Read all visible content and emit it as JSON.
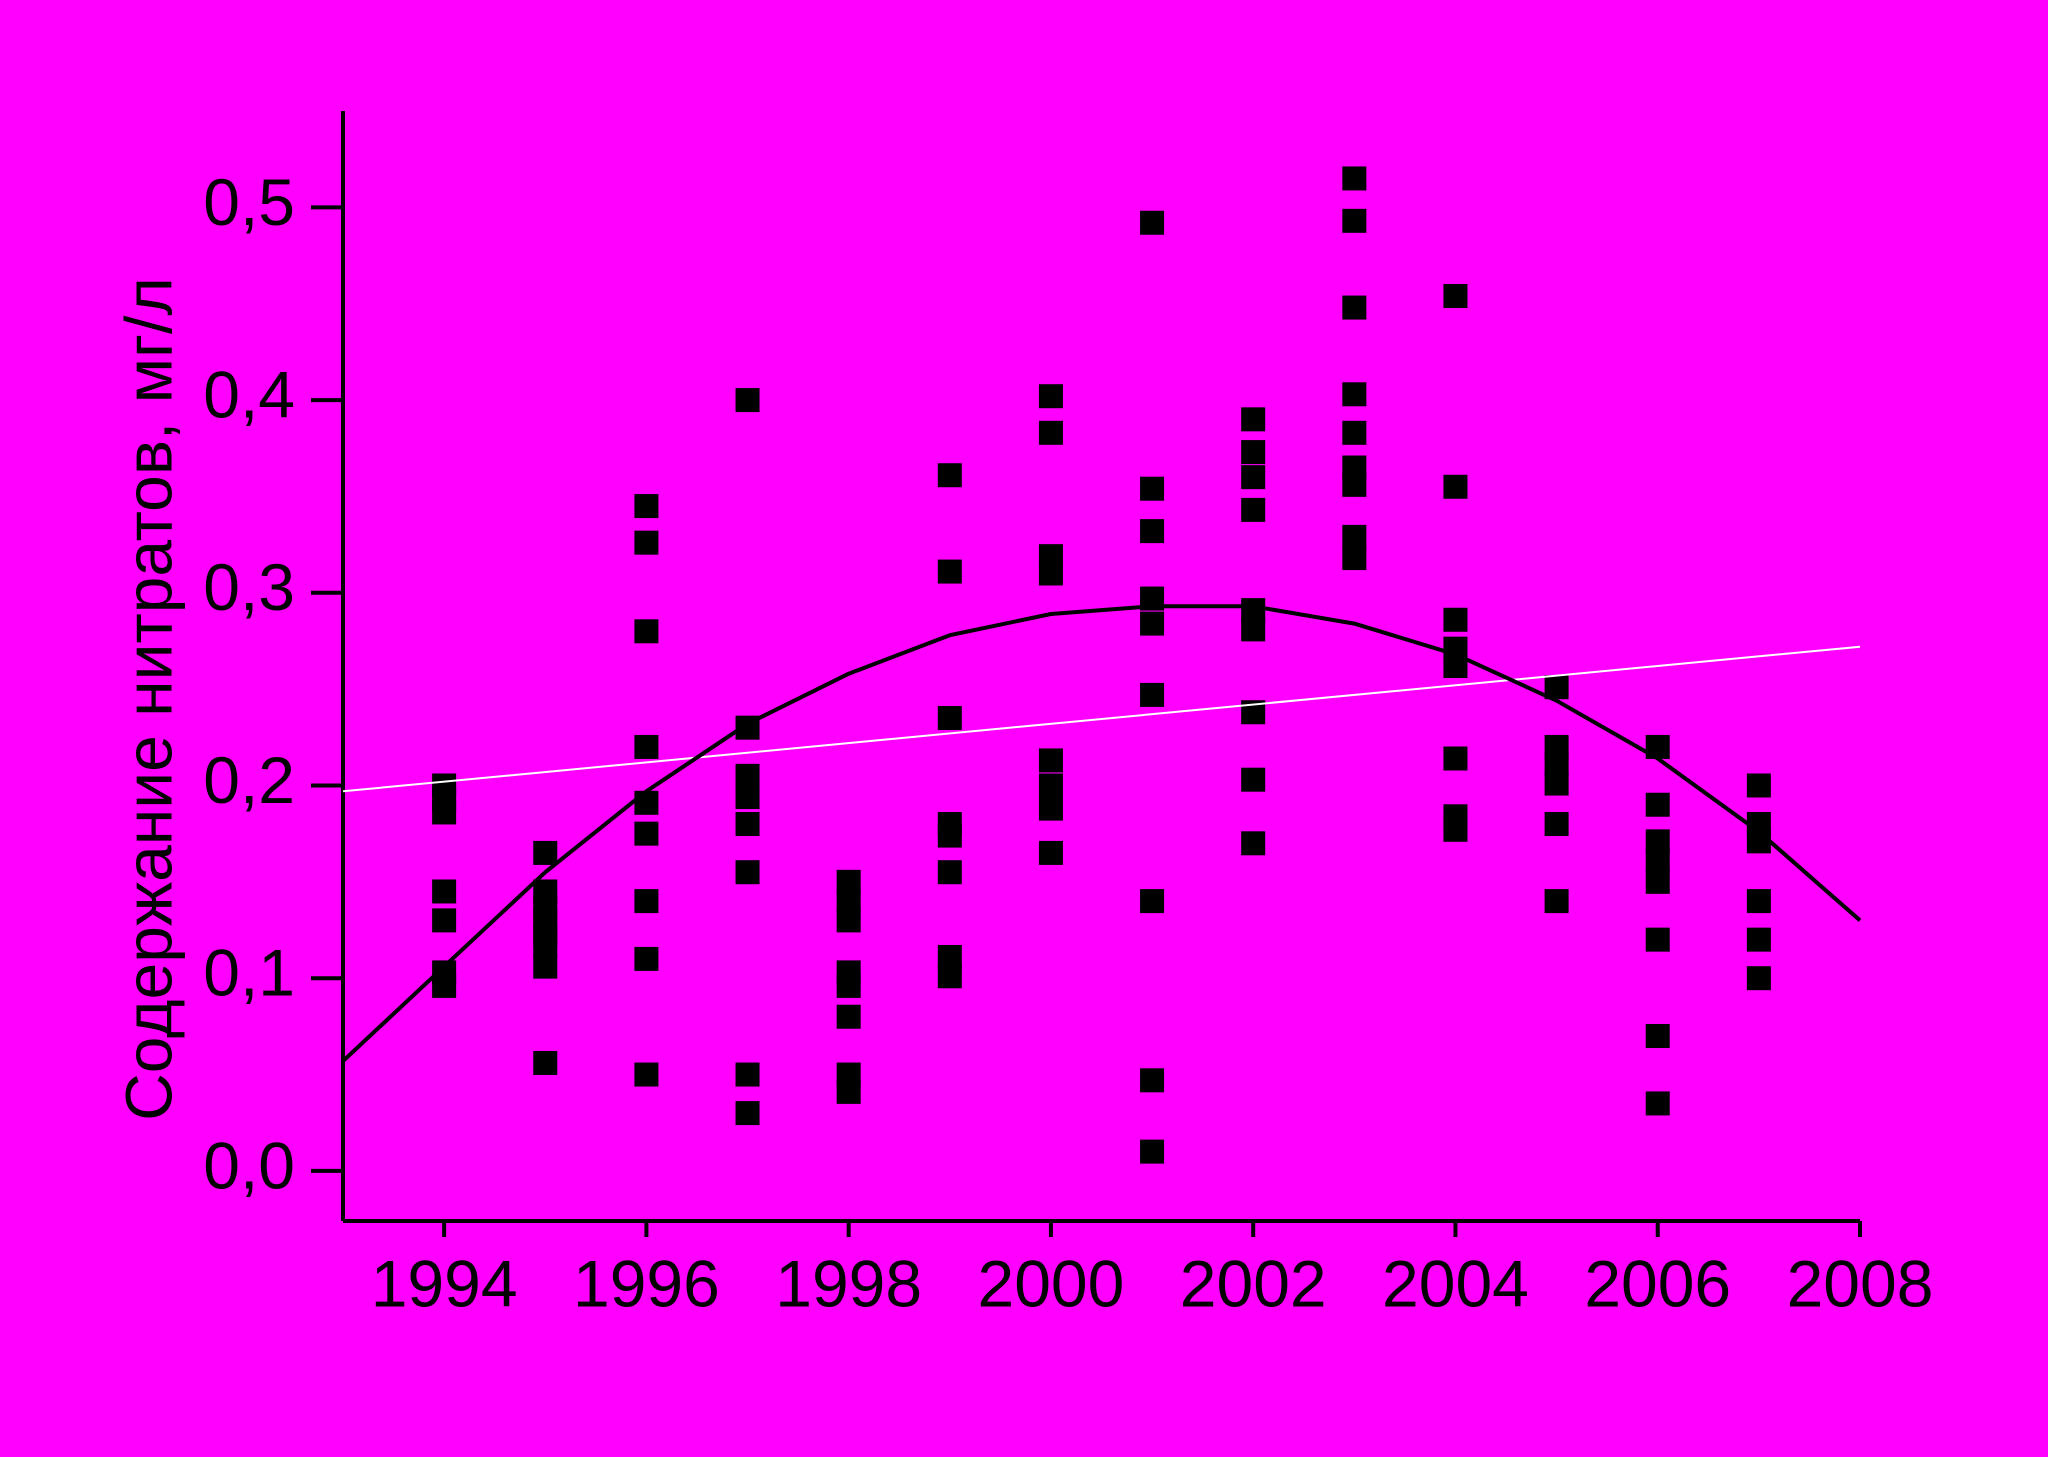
{
  "chart_data": {
    "type": "scatter",
    "ylabel": "Содержание нитратов, мг/л",
    "xlim": [
      1993,
      2008
    ],
    "xticks": [
      1994,
      1996,
      1998,
      2000,
      2002,
      2004,
      2006,
      2008
    ],
    "ylim": [
      -0.026,
      0.55
    ],
    "yticks": [
      {
        "value": 0,
        "label": "0,0"
      },
      {
        "value": 0.1,
        "label": "0,1"
      },
      {
        "value": 0.2,
        "label": "0,2"
      },
      {
        "value": 0.3,
        "label": "0,3"
      },
      {
        "value": 0.4,
        "label": "0,4"
      },
      {
        "value": 0.5,
        "label": "0,5"
      }
    ],
    "background": "#ff00ff",
    "series": [
      {
        "type": "scatter",
        "color": "#000000",
        "x": [
          1994,
          1994,
          1994,
          1994,
          1994,
          1994,
          1994,
          1995,
          1995,
          1995,
          1995,
          1995,
          1995,
          1995,
          1995,
          1996,
          1996,
          1996,
          1996,
          1996,
          1996,
          1996,
          1996,
          1996,
          1997,
          1997,
          1997,
          1997,
          1997,
          1997,
          1997,
          1997,
          1998,
          1998,
          1998,
          1998,
          1998,
          1998,
          1998,
          1998,
          1999,
          1999,
          1999,
          1999,
          1999,
          1999,
          1999,
          1999,
          2000,
          2000,
          2000,
          2000,
          2000,
          2000,
          2000,
          2000,
          2001,
          2001,
          2001,
          2001,
          2001,
          2001,
          2001,
          2001,
          2001,
          2002,
          2002,
          2002,
          2002,
          2002,
          2002,
          2002,
          2002,
          2002,
          2003,
          2003,
          2003,
          2003,
          2003,
          2003,
          2003,
          2003,
          2003,
          2004,
          2004,
          2004,
          2004,
          2004,
          2004,
          2004,
          2004,
          2005,
          2005,
          2005,
          2005,
          2005,
          2005,
          2006,
          2006,
          2006,
          2006,
          2006,
          2006,
          2006,
          2006,
          2007,
          2007,
          2007,
          2007,
          2007,
          2007
        ],
        "values": [
          0.2,
          0.193,
          0.186,
          0.145,
          0.13,
          0.103,
          0.096,
          0.165,
          0.145,
          0.137,
          0.13,
          0.123,
          0.117,
          0.106,
          0.056,
          0.345,
          0.326,
          0.28,
          0.22,
          0.191,
          0.175,
          0.14,
          0.11,
          0.05,
          0.4,
          0.23,
          0.205,
          0.194,
          0.18,
          0.155,
          0.05,
          0.03,
          0.15,
          0.14,
          0.13,
          0.103,
          0.096,
          0.08,
          0.05,
          0.041,
          0.361,
          0.311,
          0.235,
          0.18,
          0.174,
          0.155,
          0.111,
          0.101,
          0.402,
          0.383,
          0.319,
          0.31,
          0.213,
          0.2,
          0.188,
          0.165,
          0.492,
          0.354,
          0.332,
          0.297,
          0.284,
          0.247,
          0.14,
          0.047,
          0.01,
          0.39,
          0.373,
          0.36,
          0.343,
          0.291,
          0.281,
          0.238,
          0.203,
          0.17,
          0.515,
          0.493,
          0.448,
          0.403,
          0.383,
          0.365,
          0.356,
          0.329,
          0.318,
          0.454,
          0.355,
          0.286,
          0.271,
          0.262,
          0.214,
          0.184,
          0.177,
          0.251,
          0.22,
          0.211,
          0.201,
          0.18,
          0.14,
          0.22,
          0.19,
          0.171,
          0.161,
          0.15,
          0.12,
          0.07,
          0.035,
          0.2,
          0.18,
          0.171,
          0.14,
          0.12,
          0.1
        ]
      },
      {
        "type": "line",
        "color": "#ffffff",
        "x": [
          1993,
          2008
        ],
        "values": [
          0.197,
          0.272
        ]
      },
      {
        "type": "line",
        "color": "#000000",
        "x": [
          1993,
          1994,
          1995,
          1996,
          1997,
          1998,
          1999,
          2000,
          2001,
          2002,
          2003,
          2004,
          2005,
          2006,
          2007,
          2008
        ],
        "values": [
          0.057,
          0.106,
          0.155,
          0.197,
          0.232,
          0.258,
          0.278,
          0.289,
          0.293,
          0.293,
          0.284,
          0.268,
          0.244,
          0.214,
          0.176,
          0.13
        ]
      }
    ]
  }
}
